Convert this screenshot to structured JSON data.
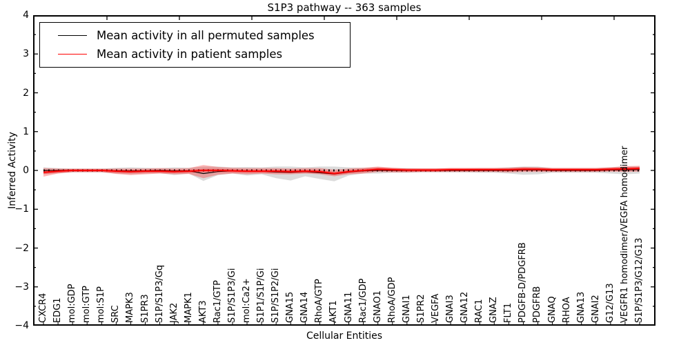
{
  "title": "S1P3 pathway -- 363 samples",
  "legend": {
    "entries": [
      {
        "label": "Mean activity in all permuted samples",
        "color": "#000000"
      },
      {
        "label": "Mean activity in patient samples",
        "color": "#ff0000"
      }
    ],
    "position": "upper left"
  },
  "chart_data": {
    "type": "line",
    "title": "S1P3 pathway -- 363 samples",
    "xlabel": "Cellular Entities",
    "ylabel": "Inferred Activity",
    "ylim": [
      -4,
      4
    ],
    "ytick_values": [
      4,
      3,
      2,
      1,
      0,
      -1,
      -2,
      -3,
      -4
    ],
    "ytick_labels": [
      "4",
      "3",
      "2",
      "1",
      "0",
      "−1",
      "−2",
      "−3",
      "−4"
    ],
    "grid": false,
    "legend_position": "upper left",
    "zero_reference_line": {
      "style": "dotted",
      "color": "#000000",
      "y": 0
    },
    "categories": [
      "CXCR4",
      "EDG1",
      "mol:GDP",
      "mol:GTP",
      "mol:S1P",
      "SRC",
      "MAPK3",
      "S1PR3",
      "S1P/S1P3/Gq",
      "JAK2",
      "MAPK1",
      "AKT3",
      "Rac1/GTP",
      "S1P/S1P3/Gi",
      "mol:Ca2+",
      "S1P1/S1P/Gi",
      "S1P/S1P2/Gi",
      "GNA15",
      "GNA14",
      "RhoA/GTP",
      "AKT1",
      "GNA11",
      "Rac1/GDP",
      "GNAO1",
      "RhoA/GDP",
      "GNAI1",
      "S1PR2",
      "VEGFA",
      "GNAI3",
      "GNA12",
      "RAC1",
      "GNAZ",
      "FLT1",
      "PDGFB-D/PDGFRB",
      "PDGFRB",
      "GNAQ",
      "RHOA",
      "GNA13",
      "GNAI2",
      "G12/G13",
      "VEGFR1 homodimer/VEGFA homodimer",
      "S1P/S1P3/G12/G13"
    ],
    "series": [
      {
        "name": "Mean activity in all permuted samples",
        "color": "#000000",
        "band_color": "rgba(0,0,0,0.14)",
        "mean": [
          0.0,
          0.0,
          0.0,
          0.0,
          0.0,
          -0.01,
          -0.01,
          -0.01,
          0.0,
          -0.01,
          -0.01,
          -0.08,
          -0.03,
          -0.01,
          -0.02,
          -0.02,
          -0.04,
          -0.05,
          -0.03,
          -0.06,
          -0.09,
          -0.04,
          -0.01,
          0.0,
          0.0,
          0.0,
          0.0,
          0.0,
          0.0,
          0.0,
          0.0,
          0.0,
          0.0,
          0.01,
          0.01,
          0.0,
          0.0,
          0.0,
          0.0,
          0.01,
          0.01,
          0.02
        ],
        "band_high": [
          0.08,
          0.06,
          0.05,
          0.05,
          0.05,
          0.07,
          0.08,
          0.07,
          0.06,
          0.08,
          0.07,
          0.1,
          0.1,
          0.08,
          0.09,
          0.08,
          0.1,
          0.1,
          0.08,
          0.1,
          0.1,
          0.08,
          0.07,
          0.08,
          0.06,
          0.06,
          0.05,
          0.05,
          0.05,
          0.05,
          0.06,
          0.06,
          0.08,
          0.1,
          0.1,
          0.06,
          0.06,
          0.06,
          0.06,
          0.08,
          0.1,
          0.1
        ],
        "band_low": [
          -0.1,
          -0.07,
          -0.05,
          -0.05,
          -0.05,
          -0.08,
          -0.1,
          -0.08,
          -0.07,
          -0.12,
          -0.08,
          -0.27,
          -0.12,
          -0.08,
          -0.13,
          -0.1,
          -0.2,
          -0.26,
          -0.15,
          -0.22,
          -0.28,
          -0.13,
          -0.08,
          -0.08,
          -0.06,
          -0.06,
          -0.05,
          -0.05,
          -0.05,
          -0.05,
          -0.06,
          -0.06,
          -0.08,
          -0.11,
          -0.1,
          -0.06,
          -0.06,
          -0.06,
          -0.06,
          -0.08,
          -0.1,
          -0.08
        ]
      },
      {
        "name": "Mean activity in patient samples",
        "color": "#ff0000",
        "band_color": "rgba(255,0,0,0.28)",
        "mean": [
          -0.05,
          -0.02,
          0.0,
          0.0,
          0.0,
          -0.02,
          -0.03,
          -0.02,
          -0.02,
          -0.03,
          -0.02,
          0.0,
          0.0,
          -0.01,
          -0.02,
          -0.02,
          -0.02,
          -0.03,
          -0.02,
          -0.03,
          -0.08,
          -0.03,
          0.0,
          0.03,
          0.02,
          0.01,
          0.01,
          0.01,
          0.02,
          0.02,
          0.02,
          0.02,
          0.02,
          0.03,
          0.03,
          0.02,
          0.02,
          0.02,
          0.02,
          0.03,
          0.04,
          0.05
        ],
        "band_high": [
          0.06,
          0.05,
          0.04,
          0.04,
          0.04,
          0.05,
          0.05,
          0.05,
          0.06,
          0.05,
          0.06,
          0.14,
          0.09,
          0.07,
          0.06,
          0.06,
          0.06,
          0.05,
          0.06,
          0.06,
          0.02,
          0.05,
          0.07,
          0.1,
          0.07,
          0.05,
          0.05,
          0.05,
          0.06,
          0.06,
          0.06,
          0.06,
          0.07,
          0.09,
          0.08,
          0.06,
          0.06,
          0.06,
          0.06,
          0.08,
          0.11,
          0.12
        ],
        "band_low": [
          -0.16,
          -0.08,
          -0.04,
          -0.04,
          -0.04,
          -0.09,
          -0.12,
          -0.1,
          -0.08,
          -0.1,
          -0.09,
          -0.2,
          -0.11,
          -0.08,
          -0.1,
          -0.08,
          -0.1,
          -0.1,
          -0.08,
          -0.1,
          -0.15,
          -0.1,
          -0.08,
          -0.04,
          -0.05,
          -0.05,
          -0.04,
          -0.04,
          -0.04,
          -0.04,
          -0.04,
          -0.04,
          -0.05,
          -0.04,
          -0.04,
          -0.04,
          -0.04,
          -0.04,
          -0.04,
          -0.03,
          -0.04,
          -0.03
        ]
      }
    ]
  }
}
